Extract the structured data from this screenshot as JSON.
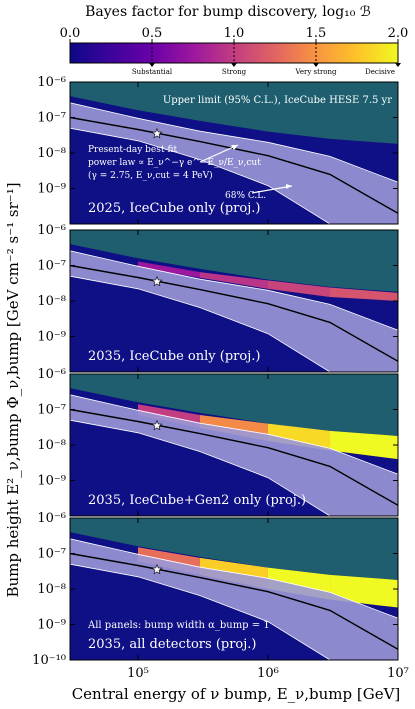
{
  "chart_data": {
    "type": "heatmap",
    "colorbar": {
      "title": "Bayes factor for bump discovery, log₁₀ ℬ",
      "range": [
        0.0,
        2.0
      ],
      "ticks": [
        "0.0",
        "0.5",
        "1.0",
        "1.5",
        "2.0"
      ],
      "tick_values": [
        0.0,
        0.5,
        1.0,
        1.5,
        2.0
      ],
      "categories": [
        {
          "label": "Substantial",
          "value": 0.5
        },
        {
          "label": "Strong",
          "value": 1.0
        },
        {
          "label": "Very strong",
          "value": 1.5
        },
        {
          "label": "Decisive",
          "value": 2.0
        }
      ],
      "colors": [
        "#0d0887",
        "#3d049b",
        "#6a00a8",
        "#9c179e",
        "#c23d81",
        "#e16462",
        "#f89441",
        "#fdc328",
        "#f0f921"
      ]
    },
    "xlabel": "Central energy of ν bump, E_ν,bump [GeV]",
    "ylabel": "Bump height E²_ν,bump Φ_ν,bump [GeV cm⁻² s⁻¹ sr⁻¹]",
    "xscale": "log",
    "yscale": "log",
    "xlim": [
      30000,
      10000000
    ],
    "ylim": [
      1e-10,
      1e-06
    ],
    "x_ticks": [
      {
        "value": 100000,
        "label": "10⁵"
      },
      {
        "value": 1000000,
        "label": "10⁶"
      },
      {
        "value": 10000000,
        "label": "10⁷"
      }
    ],
    "y_ticks": [
      {
        "value": 1e-06,
        "label": "10⁻⁶"
      },
      {
        "value": 1e-07,
        "label": "10⁻⁷"
      },
      {
        "value": 1e-08,
        "label": "10⁻⁸"
      },
      {
        "value": 1e-09,
        "label": "10⁻⁹"
      },
      {
        "value": 1e-10,
        "label": "10⁻¹⁰"
      }
    ],
    "best_fit_point": {
      "x": 140000,
      "y": 3.5e-08
    },
    "best_fit_powerlaw": {
      "x": [
        30000,
        100000,
        300000,
        1000000,
        3000000,
        10000000
      ],
      "y": [
        1e-07,
        4.6e-08,
        2.1e-08,
        8.4e-09,
        2.5e-09,
        2e-10
      ]
    },
    "ci68_band": {
      "x": [
        30000,
        100000,
        300000,
        1000000,
        3000000,
        10000000
      ],
      "upper": [
        2.6e-07,
        9.5e-08,
        4.1e-08,
        2e-08,
        8e-09,
        1.5e-09
      ],
      "lower": [
        5e-08,
        2.2e-08,
        6.5e-09,
        1.2e-09,
        1e-10,
        1e-10
      ]
    },
    "upper_limit": {
      "x": [
        30000,
        100000,
        300000,
        1000000,
        3000000,
        10000000
      ],
      "y": [
        4e-07,
        1.6e-07,
        8e-08,
        4e-08,
        2.5e-08,
        1.8e-08
      ]
    },
    "panels": [
      {
        "label": "2025, IceCube only (proj.)",
        "annotations": [
          "Upper limit (95% C.L.), IceCube HESE 7.5 yr",
          "Present-day best-fit",
          "power law ∝ E_ν^−γ e^−E_ν/E_ν,cut",
          "(γ = 2.75, E_ν,cut = 4 PeV)",
          "68% C.L."
        ],
        "hot_region": []
      },
      {
        "label": "2035, IceCube only (proj.)",
        "annotations": [],
        "hot_region": [
          {
            "x": 100000,
            "y_low": 9e-08,
            "y_high": 1.3e-07,
            "log10B": 0.6
          },
          {
            "x": 300000,
            "y_low": 4.5e-08,
            "y_high": 6.5e-08,
            "log10B": 0.9
          },
          {
            "x": 1000000,
            "y_low": 2.2e-08,
            "y_high": 3.8e-08,
            "log10B": 1.0
          },
          {
            "x": 3000000,
            "y_low": 1.3e-08,
            "y_high": 2.4e-08,
            "log10B": 1.1
          },
          {
            "x": 10000000,
            "y_low": 1e-08,
            "y_high": 1.7e-08,
            "log10B": 1.2
          }
        ]
      },
      {
        "label": "2035, IceCube+Gen2 only (proj.)",
        "annotations": [],
        "hot_region": [
          {
            "x": 100000,
            "y_low": 7e-08,
            "y_high": 1.4e-07,
            "log10B": 0.8
          },
          {
            "x": 300000,
            "y_low": 3e-08,
            "y_high": 7e-08,
            "log10B": 1.2
          },
          {
            "x": 1000000,
            "y_low": 1.3e-08,
            "y_high": 4e-08,
            "log10B": 1.7
          },
          {
            "x": 3000000,
            "y_low": 7e-09,
            "y_high": 2.5e-08,
            "log10B": 2.0
          },
          {
            "x": 10000000,
            "y_low": 4e-09,
            "y_high": 1.8e-08,
            "log10B": 2.0
          }
        ]
      },
      {
        "label": "2035, all detectors (proj.)",
        "annotations": [
          "All panels: bump width α_bump = 1"
        ],
        "hot_region": [
          {
            "x": 100000,
            "y_low": 6e-08,
            "y_high": 1.5e-07,
            "log10B": 1.0
          },
          {
            "x": 300000,
            "y_low": 2.5e-08,
            "y_high": 7.5e-08,
            "log10B": 1.6
          },
          {
            "x": 1000000,
            "y_low": 1e-08,
            "y_high": 4e-08,
            "log10B": 2.0
          },
          {
            "x": 3000000,
            "y_low": 5e-09,
            "y_high": 2.5e-08,
            "log10B": 2.0
          },
          {
            "x": 10000000,
            "y_low": 3e-09,
            "y_high": 1.8e-08,
            "log10B": 2.0
          }
        ]
      }
    ],
    "legend_placement": "none",
    "grid": false
  }
}
